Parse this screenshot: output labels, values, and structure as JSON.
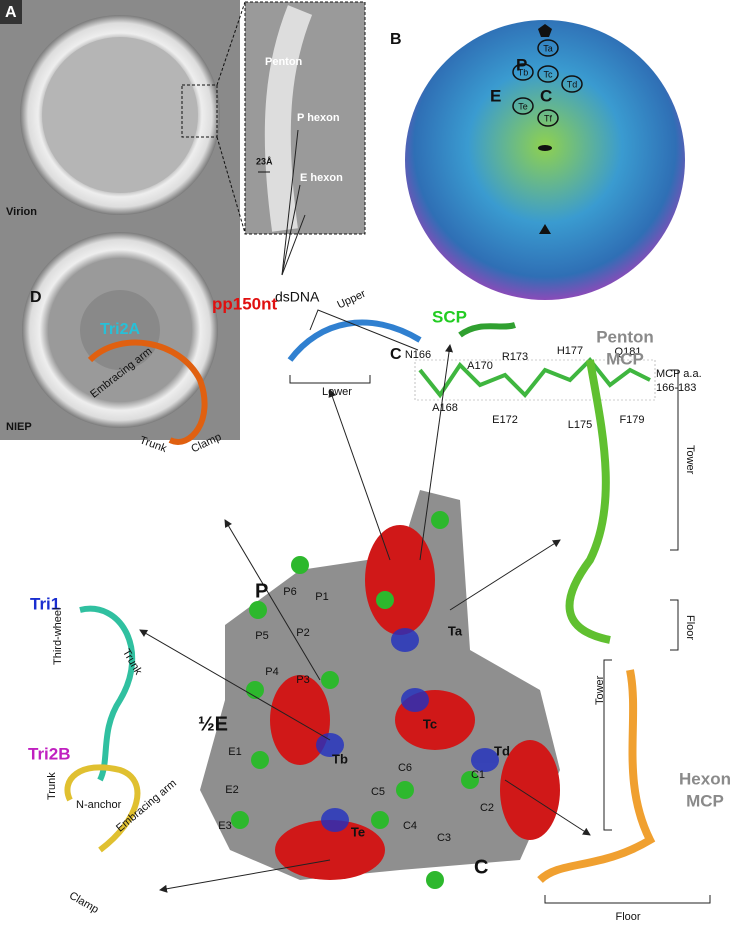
{
  "panels": {
    "a": {
      "label": "A",
      "virion": "Virion",
      "niep": "NIEP",
      "inset_labels": [
        "Penton",
        "P hexon",
        "E hexon"
      ],
      "scale_bar": "23Å",
      "dsdna": "dsDNA"
    },
    "b": {
      "label": "B",
      "regions": [
        "P",
        "E",
        "C"
      ],
      "triplexes": [
        "Ta",
        "Tb",
        "Tc",
        "Td",
        "Te",
        "Tf"
      ]
    },
    "c": {
      "label": "C",
      "residues_top": [
        "N166",
        "A170",
        "R173",
        "H177",
        "Q181"
      ],
      "residues_bottom": [
        "A168",
        "E172",
        "L175",
        "F179"
      ],
      "caption": [
        "MCP a.a.",
        "166-183"
      ]
    },
    "d": {
      "label": "D",
      "tri2a": {
        "title": "Tri2A",
        "parts": [
          "Embracing arm",
          "Trunk",
          "Clamp"
        ]
      },
      "pp150nt": {
        "title": "pp150nt",
        "parts": [
          "Upper",
          "Lower"
        ]
      },
      "scp": {
        "title": "SCP"
      },
      "penton_mcp": {
        "title": [
          "Penton",
          "MCP"
        ],
        "parts": [
          "Tower",
          "Floor"
        ]
      },
      "tri1": {
        "title": "Tri1",
        "parts": [
          "Third-wheel",
          "Trunk",
          "N-anchor"
        ]
      },
      "hexon_mcp": {
        "title": [
          "Hexon",
          "MCP"
        ],
        "parts": [
          "Tower",
          "Floor"
        ]
      },
      "tri2b": {
        "title": "Tri2B",
        "parts": [
          "Trunk",
          "Embracing arm",
          "Clamp"
        ]
      },
      "vertex_labels": [
        "P",
        "½E",
        "C"
      ],
      "capsomer_labels": [
        "P1",
        "P2",
        "P3",
        "P4",
        "P5",
        "P6",
        "E1",
        "E2",
        "E3",
        "C1",
        "C2",
        "C3",
        "C4",
        "C5",
        "C6"
      ],
      "triplex_labels": [
        "Ta",
        "Tb",
        "Tc",
        "Td",
        "Te"
      ]
    }
  }
}
